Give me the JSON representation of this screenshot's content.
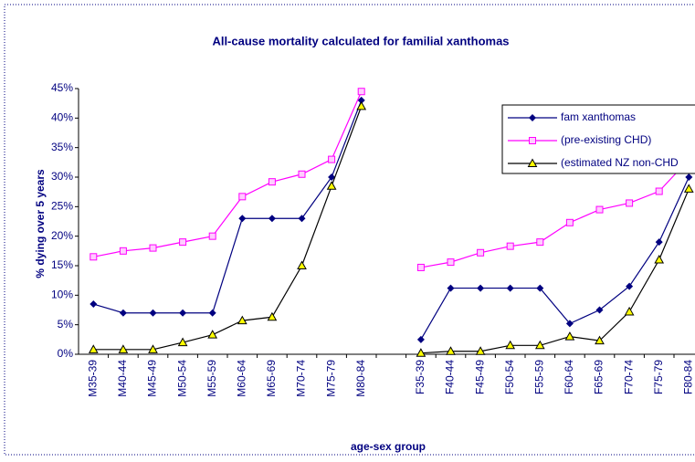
{
  "chart_data": {
    "type": "line",
    "title": "All-cause mortality calculated for familial xanthomas",
    "x_label": "age-sex group",
    "y_label": "% dying over 5 years",
    "categories": [
      "M35-39",
      "M40-44",
      "M45-49",
      "M50-54",
      "M55-59",
      "M60-64",
      "M65-69",
      "M70-74",
      "M75-79",
      "M80-84",
      null,
      "F35-39",
      "F40-44",
      "F45-49",
      "F50-54",
      "F55-59",
      "F60-64",
      "F65-69",
      "F70-74",
      "F75-79",
      "F80-84"
    ],
    "series": [
      {
        "name": "fam xanthomas",
        "color": "#000080",
        "marker": "diamond",
        "values": [
          8.5,
          7,
          7,
          7,
          7,
          23,
          23,
          23,
          30,
          43,
          null,
          2.5,
          11.2,
          11.2,
          11.2,
          11.2,
          5.2,
          7.5,
          11.5,
          19,
          30
        ]
      },
      {
        "name": "(pre-existing CHD)",
        "color": "#ff00ff",
        "marker": "square",
        "values": [
          16.5,
          17.5,
          18,
          19,
          20,
          26.7,
          29.2,
          30.5,
          33,
          44.5,
          null,
          14.7,
          15.6,
          17.2,
          18.3,
          19,
          22.3,
          24.5,
          25.6,
          27.6,
          33
        ]
      },
      {
        "name": "(estimated NZ non-CHD",
        "color": "#000000",
        "marker": "triangle",
        "values": [
          0.8,
          0.8,
          0.8,
          2,
          3.3,
          5.7,
          6.3,
          15,
          28.5,
          42,
          null,
          0.2,
          0.5,
          0.5,
          1.5,
          1.5,
          3,
          2.3,
          7.2,
          16,
          28
        ]
      }
    ],
    "ylim": [
      0,
      45
    ],
    "yticks": [
      {
        "value": 0,
        "label": "0%"
      },
      {
        "value": 5,
        "label": "5%"
      },
      {
        "value": 10,
        "label": "10%"
      },
      {
        "value": 15,
        "label": "15%"
      },
      {
        "value": 20,
        "label": "20%"
      },
      {
        "value": 25,
        "label": "25%"
      },
      {
        "value": 30,
        "label": "30%"
      },
      {
        "value": 35,
        "label": "35%"
      },
      {
        "value": 40,
        "label": "40%"
      },
      {
        "value": 45,
        "label": "45%"
      }
    ],
    "legend": "top-right"
  }
}
